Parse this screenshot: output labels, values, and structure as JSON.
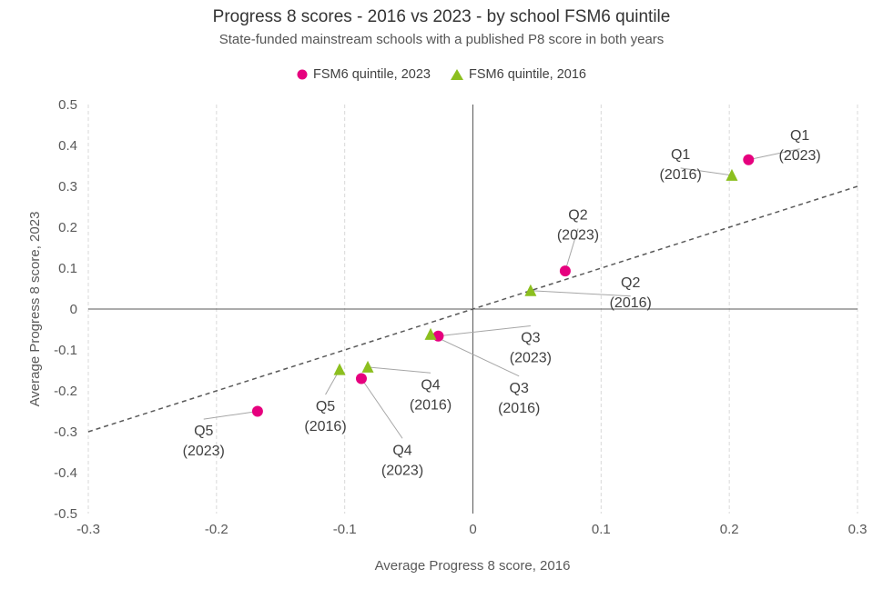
{
  "chart_data": {
    "type": "scatter",
    "title": "Progress 8 scores - 2016 vs 2023 - by school FSM6 quintile",
    "subtitle": "State-funded mainstream schools with a published P8 score in both years",
    "xlabel": "Average Progress 8 score, 2016",
    "ylabel": "Average Progress 8 score, 2023",
    "xlim": [
      -0.3,
      0.3
    ],
    "ylim": [
      -0.5,
      0.5
    ],
    "xticks": [
      -0.3,
      -0.2,
      -0.1,
      0,
      0.1,
      0.2,
      0.3
    ],
    "yticks": [
      -0.5,
      -0.4,
      -0.3,
      -0.2,
      -0.1,
      0,
      0.1,
      0.2,
      0.3,
      0.4,
      0.5
    ],
    "xtick_labels": [
      "-0.3",
      "-0.2",
      "-0.1",
      "0",
      "0.1",
      "0.2",
      "0.3"
    ],
    "ytick_labels": [
      "-0.5",
      "-0.4",
      "-0.3",
      "-0.2",
      "-0.1",
      "0",
      "0.1",
      "0.2",
      "0.3",
      "0.4",
      "0.5"
    ],
    "grid": "vertical",
    "legend_position": "top",
    "reference_line": {
      "style": "dashed",
      "from": [
        -0.3,
        -0.3
      ],
      "to": [
        0.3,
        0.3
      ]
    },
    "series": [
      {
        "name": "FSM6 quintile, 2023",
        "marker": "circle",
        "color": "#e6007e",
        "points": [
          {
            "x": 0.215,
            "y": 0.365,
            "label": [
              "Q1",
              "(2023)"
            ],
            "label_at": [
              0.255,
              0.405
            ]
          },
          {
            "x": 0.072,
            "y": 0.093,
            "label": [
              "Q2",
              "(2023)"
            ],
            "label_at": [
              0.082,
              0.21
            ]
          },
          {
            "x": -0.027,
            "y": -0.066,
            "label": [
              "Q3",
              "(2023)"
            ],
            "label_at": [
              0.045,
              -0.09
            ]
          },
          {
            "x": -0.087,
            "y": -0.17,
            "label": [
              "Q4",
              "(2023)"
            ],
            "label_at": [
              -0.055,
              -0.365
            ]
          },
          {
            "x": -0.168,
            "y": -0.25,
            "label": [
              "Q5",
              "(2023)"
            ],
            "label_at": [
              -0.21,
              -0.318
            ]
          }
        ]
      },
      {
        "name": "FSM6 quintile, 2016",
        "marker": "triangle",
        "color": "#8cbf1f",
        "points": [
          {
            "x": 0.202,
            "y": 0.327,
            "label": [
              "Q1",
              "(2016)"
            ],
            "label_at": [
              0.162,
              0.358
            ]
          },
          {
            "x": 0.045,
            "y": 0.045,
            "label": [
              "Q2",
              "(2016)"
            ],
            "label_at": [
              0.123,
              0.045
            ]
          },
          {
            "x": -0.033,
            "y": -0.062,
            "label": [
              "Q3",
              "(2016)"
            ],
            "label_at": [
              0.036,
              -0.213
            ]
          },
          {
            "x": -0.082,
            "y": -0.142,
            "label": [
              "Q4",
              "(2016)"
            ],
            "label_at": [
              -0.033,
              -0.205
            ]
          },
          {
            "x": -0.104,
            "y": -0.148,
            "label": [
              "Q5",
              "(2016)"
            ],
            "label_at": [
              -0.115,
              -0.258
            ]
          }
        ]
      }
    ]
  }
}
